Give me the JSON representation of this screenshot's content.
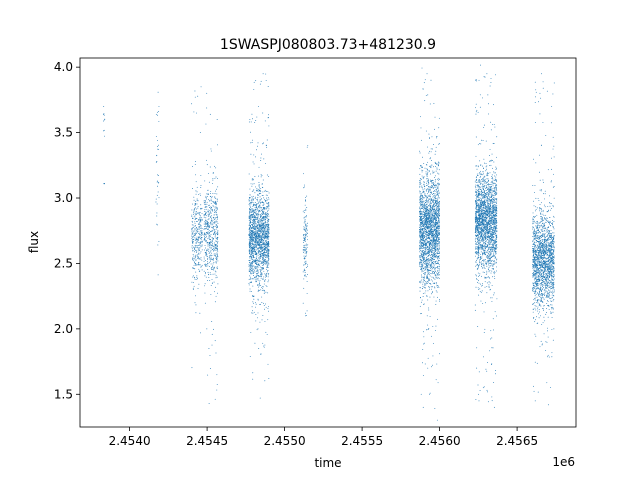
{
  "chart_data": {
    "type": "scatter",
    "title": "1SWASPJ080803.73+481230.9",
    "xlabel": "time",
    "ylabel": "flux",
    "x_offset_label": "1e6",
    "x_scale": 1000000,
    "xlim": [
      2.45368,
      2.45688
    ],
    "ylim": [
      1.25,
      4.07
    ],
    "x_ticks": [
      2.454,
      2.4545,
      2.455,
      2.4555,
      2.456,
      2.4565
    ],
    "x_tick_labels": [
      "2.4540",
      "2.4545",
      "2.4550",
      "2.4555",
      "2.4560",
      "2.4565"
    ],
    "y_ticks": [
      1.5,
      2.0,
      2.5,
      3.0,
      3.5,
      4.0
    ],
    "y_tick_labels": [
      "1.5",
      "2.0",
      "2.5",
      "3.0",
      "3.5",
      "4.0"
    ],
    "grid": false,
    "marker_color": "#1f77b4",
    "series": [
      {
        "clusters": [
          {
            "x_start": 2.45383,
            "x_end": 2.45384,
            "y_center": 3.6,
            "y_spread": 0.08,
            "count": 10,
            "outliers": [
              3.11
            ]
          },
          {
            "x_start": 2.45417,
            "x_end": 2.45419,
            "y_center": 3.2,
            "y_spread": 0.3,
            "count": 30,
            "outliers": [
              3.7,
              2.8
            ]
          },
          {
            "x_start": 2.4544,
            "x_end": 2.45447,
            "y_center": 2.7,
            "y_spread": 0.17,
            "count": 320,
            "outliers": [
              3.85,
              2.2,
              3.5,
              2.3
            ]
          },
          {
            "x_start": 2.45448,
            "x_end": 2.45457,
            "y_center": 2.72,
            "y_spread": 0.18,
            "count": 520,
            "outliers": [
              3.8,
              1.85,
              1.65,
              1.43,
              3.6,
              2.0
            ]
          },
          {
            "x_start": 2.45477,
            "x_end": 2.4549,
            "y_center": 2.7,
            "y_spread": 0.17,
            "count": 1700,
            "outliers": [
              3.95,
              1.85,
              3.7,
              1.62,
              2.0
            ]
          },
          {
            "x_start": 2.45512,
            "x_end": 2.45515,
            "y_center": 2.65,
            "y_spread": 0.16,
            "count": 130,
            "outliers": [
              3.4,
              2.1
            ]
          },
          {
            "x_start": 2.45587,
            "x_end": 2.456,
            "y_center": 2.75,
            "y_spread": 0.2,
            "count": 2100,
            "outliers": [
              3.95,
              1.4,
              3.9,
              1.5,
              2.1
            ]
          },
          {
            "x_start": 2.45623,
            "x_end": 2.45637,
            "y_center": 2.82,
            "y_spread": 0.18,
            "count": 2100,
            "outliers": [
              3.95,
              1.4,
              3.9,
              1.45,
              2.2
            ]
          },
          {
            "x_start": 2.4566,
            "x_end": 2.45674,
            "y_center": 2.52,
            "y_spread": 0.17,
            "count": 1700,
            "outliers": [
              3.95,
              1.45,
              3.8,
              1.42,
              3.7,
              2.0
            ]
          }
        ]
      }
    ]
  }
}
